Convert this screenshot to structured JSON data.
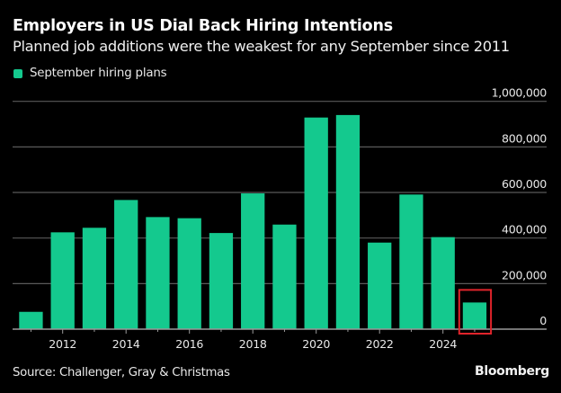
{
  "header": {
    "title": "Employers in US Dial Back Hiring Intentions",
    "subtitle": "Planned job additions were the weakest for any September since 2011"
  },
  "footer": {
    "source": "Source: Challenger, Gray & Christmas",
    "brand": "Bloomberg"
  },
  "colors": {
    "background": "#000000",
    "bar": "#14c98e",
    "grid": "#5a5a5a",
    "axis": "#9a9a9a",
    "highlight_box": "#e0242b"
  },
  "chart_data": {
    "type": "bar",
    "title": "Employers in US Dial Back Hiring Intentions",
    "subtitle": "Planned job additions were the weakest for any September since 2011",
    "xlabel": "",
    "ylabel": "",
    "legend": {
      "entries": [
        "September hiring plans"
      ],
      "placement": "top-left"
    },
    "categories": [
      "2011",
      "2012",
      "2013",
      "2014",
      "2015",
      "2016",
      "2017",
      "2018",
      "2019",
      "2020",
      "2021",
      "2022",
      "2023",
      "2024",
      "2025"
    ],
    "series": [
      {
        "name": "September hiring plans",
        "values": [
          76000,
          425000,
          445000,
          567000,
          492000,
          487000,
          422000,
          596000,
          459000,
          929000,
          940000,
          380000,
          591000,
          404000,
          117000
        ]
      }
    ],
    "x_tick_labels": [
      "2012",
      "2014",
      "2016",
      "2018",
      "2020",
      "2022",
      "2024"
    ],
    "y_ticks": [
      0,
      200000,
      400000,
      600000,
      800000,
      1000000
    ],
    "y_tick_labels": [
      "0",
      "200,000",
      "400,000",
      "600,000",
      "800,000",
      "1,000,000"
    ],
    "ylim": [
      0,
      1000000
    ],
    "y_axis_side": "right",
    "grid": true,
    "annotations": [
      {
        "type": "highlight-box",
        "category": "2025",
        "color": "red"
      }
    ]
  }
}
